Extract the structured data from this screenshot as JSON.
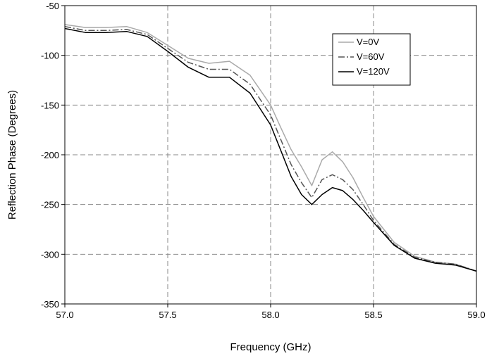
{
  "chart_data": {
    "type": "line",
    "title": "",
    "xlabel": "Frequency (GHz)",
    "ylabel": "Reflection Phase (Degrees)",
    "xlim": [
      57.0,
      59.0
    ],
    "ylim": [
      -350,
      -50
    ],
    "xticks": [
      57.0,
      57.5,
      58.0,
      58.5,
      59.0
    ],
    "xtick_labels": [
      "57.0",
      "57.5",
      "58.0",
      "58.5",
      "59.0"
    ],
    "yticks": [
      -350,
      -300,
      -250,
      -200,
      -150,
      -100,
      -50
    ],
    "ytick_labels": [
      "-350",
      "-300",
      "-250",
      "-200",
      "-150",
      "-100",
      "-50"
    ],
    "grid": true,
    "legend_position": "top-right",
    "series": [
      {
        "name": "V=0V",
        "color": "#aaaaaa",
        "dash": "solid",
        "points": [
          [
            57.0,
            -69
          ],
          [
            57.1,
            -72
          ],
          [
            57.2,
            -72
          ],
          [
            57.3,
            -71
          ],
          [
            57.4,
            -77
          ],
          [
            57.5,
            -90
          ],
          [
            57.6,
            -103
          ],
          [
            57.7,
            -108
          ],
          [
            57.8,
            -106
          ],
          [
            57.9,
            -120
          ],
          [
            58.0,
            -150
          ],
          [
            58.05,
            -173
          ],
          [
            58.1,
            -195
          ],
          [
            58.15,
            -212
          ],
          [
            58.2,
            -231
          ],
          [
            58.25,
            -205
          ],
          [
            58.3,
            -197
          ],
          [
            58.35,
            -207
          ],
          [
            58.4,
            -223
          ],
          [
            58.45,
            -243
          ],
          [
            58.5,
            -262
          ],
          [
            58.6,
            -288
          ],
          [
            58.7,
            -302
          ],
          [
            58.8,
            -308
          ],
          [
            58.9,
            -310
          ],
          [
            59.0,
            -317
          ]
        ]
      },
      {
        "name": "V=60V",
        "color": "#555555",
        "dash": "dash-dot",
        "points": [
          [
            57.0,
            -71
          ],
          [
            57.1,
            -75
          ],
          [
            57.2,
            -75
          ],
          [
            57.3,
            -74
          ],
          [
            57.4,
            -79
          ],
          [
            57.5,
            -93
          ],
          [
            57.6,
            -107
          ],
          [
            57.7,
            -114
          ],
          [
            57.8,
            -114
          ],
          [
            57.9,
            -129
          ],
          [
            58.0,
            -160
          ],
          [
            58.05,
            -185
          ],
          [
            58.1,
            -210
          ],
          [
            58.15,
            -228
          ],
          [
            58.2,
            -243
          ],
          [
            58.25,
            -225
          ],
          [
            58.3,
            -220
          ],
          [
            58.35,
            -225
          ],
          [
            58.4,
            -235
          ],
          [
            58.45,
            -250
          ],
          [
            58.5,
            -266
          ],
          [
            58.6,
            -290
          ],
          [
            58.7,
            -303
          ],
          [
            58.8,
            -308
          ],
          [
            58.9,
            -310
          ],
          [
            59.0,
            -317
          ]
        ]
      },
      {
        "name": "V=120V",
        "color": "#000000",
        "dash": "solid",
        "points": [
          [
            57.0,
            -73
          ],
          [
            57.1,
            -77
          ],
          [
            57.2,
            -77
          ],
          [
            57.3,
            -76
          ],
          [
            57.4,
            -81
          ],
          [
            57.5,
            -96
          ],
          [
            57.6,
            -112
          ],
          [
            57.7,
            -122
          ],
          [
            57.8,
            -122
          ],
          [
            57.9,
            -138
          ],
          [
            58.0,
            -170
          ],
          [
            58.05,
            -196
          ],
          [
            58.1,
            -222
          ],
          [
            58.15,
            -240
          ],
          [
            58.2,
            -250
          ],
          [
            58.25,
            -240
          ],
          [
            58.3,
            -233
          ],
          [
            58.35,
            -236
          ],
          [
            58.4,
            -245
          ],
          [
            58.45,
            -256
          ],
          [
            58.5,
            -268
          ],
          [
            58.6,
            -291
          ],
          [
            58.7,
            -304
          ],
          [
            58.8,
            -309
          ],
          [
            58.9,
            -311
          ],
          [
            59.0,
            -317
          ]
        ]
      }
    ]
  }
}
